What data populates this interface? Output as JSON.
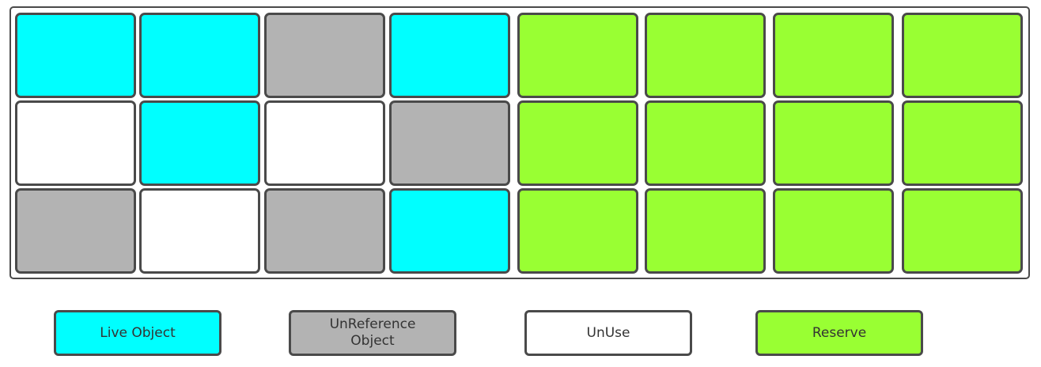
{
  "memory_grid": {
    "rows": [
      [
        "live",
        "live",
        "unref",
        "live",
        "reserve",
        "reserve",
        "reserve",
        "reserve"
      ],
      [
        "unuse",
        "live",
        "unuse",
        "unref",
        "reserve",
        "reserve",
        "reserve",
        "reserve"
      ],
      [
        "unref",
        "unuse",
        "unref",
        "live",
        "reserve",
        "reserve",
        "reserve",
        "reserve"
      ]
    ]
  },
  "colors": {
    "live": "#00ffff",
    "unref": "#b3b3b3",
    "unuse": "#ffffff",
    "reserve": "#99ff33",
    "border": "#4a4a4a"
  },
  "legend": {
    "live": "Live Object",
    "unref": "UnReference\nObject",
    "unuse": "UnUse",
    "reserve": "Reserve"
  }
}
